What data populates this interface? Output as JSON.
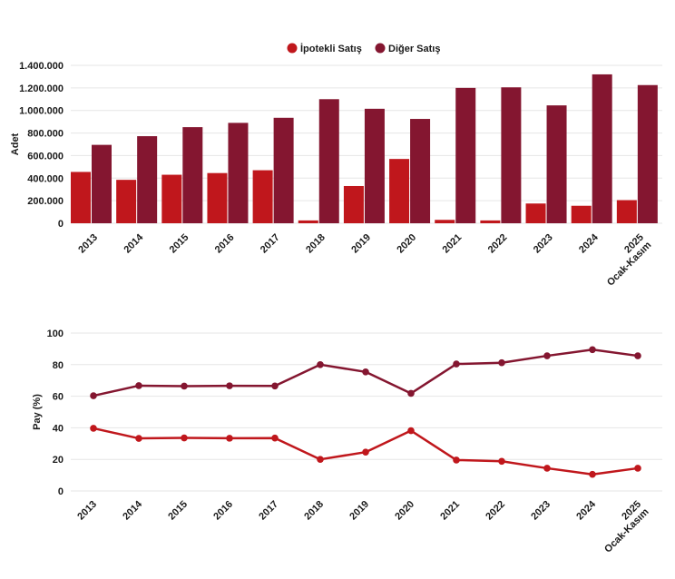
{
  "chart_data": [
    {
      "type": "bar",
      "title": "",
      "xlabel": "",
      "ylabel": "Adet",
      "ylim": [
        0,
        1400000
      ],
      "yticks": [
        "0",
        "200.000",
        "400.000",
        "600.000",
        "800.000",
        "1.000.000",
        "1.200.000",
        "1.400.000"
      ],
      "ytick_values": [
        0,
        200000,
        400000,
        600000,
        800000,
        1000000,
        1200000,
        1400000
      ],
      "categories": [
        "2013",
        "2014",
        "2015",
        "2016",
        "2017",
        "2018",
        "2019",
        "2020",
        "2021",
        "2022",
        "2023",
        "2024",
        "2025\nOcak-Kasım"
      ],
      "legend_position": "top-center",
      "series": [
        {
          "name": "İpotekli Satış",
          "color": "#c0171c",
          "values": [
            455000,
            385000,
            430000,
            445000,
            470000,
            25000,
            330000,
            570000,
            30000,
            25000,
            175000,
            155000,
            205000
          ]
        },
        {
          "name": "Diğer Satış",
          "color": "#841630",
          "values": [
            695000,
            772000,
            852000,
            890000,
            935000,
            1100000,
            1015000,
            925000,
            1200000,
            1205000,
            1045000,
            1320000,
            1225000
          ]
        }
      ]
    },
    {
      "type": "line",
      "title": "",
      "xlabel": "",
      "ylabel": "Pay (%)",
      "ylim": [
        0,
        100
      ],
      "yticks": [
        "0",
        "20",
        "40",
        "60",
        "80",
        "100"
      ],
      "ytick_values": [
        0,
        20,
        40,
        60,
        80,
        100
      ],
      "categories": [
        "2013",
        "2014",
        "2015",
        "2016",
        "2017",
        "2018",
        "2019",
        "2020",
        "2021",
        "2022",
        "2023",
        "2024",
        "2025\nOcak-Kasım"
      ],
      "series": [
        {
          "name": "İpotekli Satış",
          "color": "#c0171c",
          "values": [
            39.7,
            33.3,
            33.6,
            33.4,
            33.5,
            20.0,
            24.6,
            38.2,
            19.6,
            18.8,
            14.4,
            10.5,
            14.4
          ]
        },
        {
          "name": "Diğer Satış",
          "color": "#841630",
          "values": [
            60.3,
            66.7,
            66.4,
            66.6,
            66.5,
            80.0,
            75.4,
            61.8,
            80.4,
            81.2,
            85.6,
            89.5,
            85.6
          ]
        }
      ]
    }
  ]
}
